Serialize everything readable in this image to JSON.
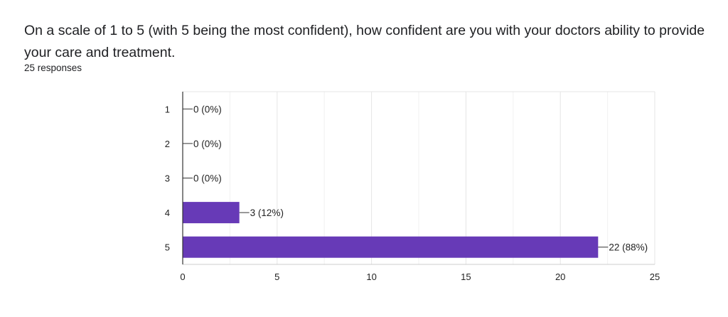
{
  "question": {
    "title": "On a scale of 1 to 5 (with 5 being the most confident), how confident are you with your doctors ability to provide your care and treatment.",
    "responses": "25 responses"
  },
  "colors": {
    "bar": "#673ab7",
    "grid": "#e5e5e5",
    "axis": "#333333"
  },
  "chart_data": {
    "type": "bar",
    "orientation": "horizontal",
    "categories": [
      "1",
      "2",
      "3",
      "4",
      "5"
    ],
    "values": [
      0,
      0,
      0,
      3,
      22
    ],
    "data_labels": [
      "0 (0%)",
      "0 (0%)",
      "0 (0%)",
      "3 (12%)",
      "22 (88%)"
    ],
    "xlim": [
      0,
      25
    ],
    "xticks": [
      "0",
      "5",
      "10",
      "15",
      "20",
      "25"
    ],
    "grid": true,
    "legend": "none"
  }
}
